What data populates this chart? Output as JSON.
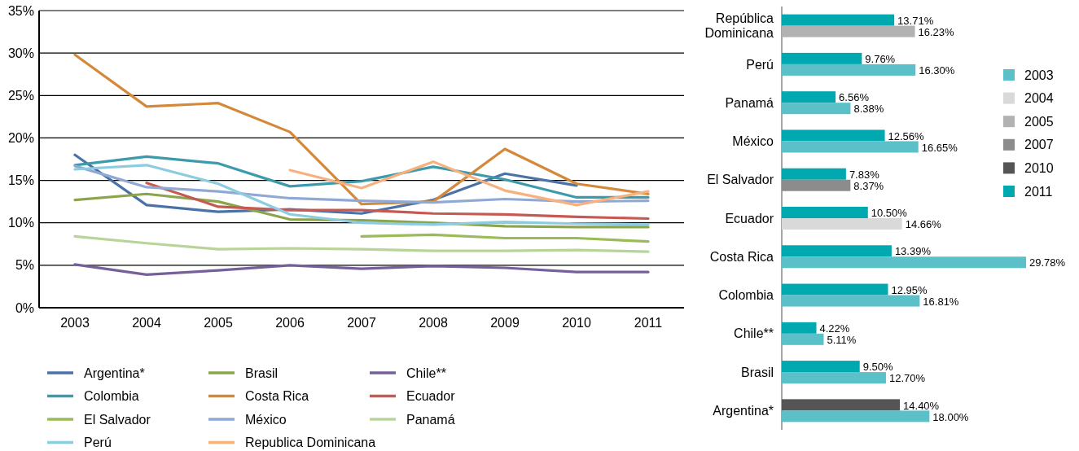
{
  "chart_data": [
    {
      "type": "line",
      "x": [
        2003,
        2004,
        2005,
        2006,
        2007,
        2008,
        2009,
        2010,
        2011
      ],
      "xlim": [
        2002.5,
        2011.5
      ],
      "xticks": [
        2003,
        2004,
        2005,
        2006,
        2007,
        2008,
        2009,
        2010,
        2011
      ],
      "ylim": [
        0,
        35
      ],
      "yticks": [
        {
          "value": 0,
          "label": "0%"
        },
        {
          "value": 5,
          "label": "5%"
        },
        {
          "value": 10,
          "label": "10%"
        },
        {
          "value": 15,
          "label": "15%"
        },
        {
          "value": 20,
          "label": "20%"
        },
        {
          "value": 25,
          "label": "25%"
        },
        {
          "value": 30,
          "label": "30%"
        },
        {
          "value": 35,
          "label": "35%"
        }
      ],
      "grid": "y",
      "legend": "bottom",
      "line_style": "solid",
      "series": [
        {
          "name": "Argentina*",
          "color": "#4a72a6",
          "values": [
            18.0,
            12.1,
            11.3,
            11.6,
            11.1,
            12.7,
            15.8,
            14.4,
            null
          ]
        },
        {
          "name": "Brasil",
          "color": "#8aa54a",
          "values": [
            12.7,
            13.4,
            12.5,
            10.4,
            10.3,
            10.0,
            9.6,
            9.5,
            9.5
          ]
        },
        {
          "name": "Chile**",
          "color": "#75609a",
          "values": [
            5.1,
            3.9,
            4.4,
            5.0,
            4.6,
            4.9,
            4.7,
            4.2,
            4.2
          ]
        },
        {
          "name": "Colombia",
          "color": "#3d9aab",
          "values": [
            16.8,
            17.8,
            17.0,
            14.3,
            14.9,
            16.6,
            15.1,
            13.0,
            13.0
          ]
        },
        {
          "name": "Costa Rica",
          "color": "#d4883a",
          "values": [
            29.8,
            23.7,
            24.1,
            20.7,
            12.2,
            12.5,
            18.7,
            14.6,
            13.4
          ]
        },
        {
          "name": "Ecuador",
          "color": "#c65a52",
          "values": [
            null,
            14.7,
            11.9,
            11.5,
            11.5,
            11.1,
            11.0,
            10.7,
            10.5
          ]
        },
        {
          "name": "El Salvador",
          "color": "#9bbb59",
          "values": [
            null,
            null,
            null,
            null,
            8.4,
            8.6,
            8.2,
            8.2,
            7.8
          ]
        },
        {
          "name": "México",
          "color": "#8fa9d4",
          "values": [
            16.7,
            14.2,
            13.7,
            12.9,
            12.6,
            12.4,
            12.8,
            12.5,
            12.6
          ]
        },
        {
          "name": "Panamá",
          "color": "#b8d49a",
          "values": [
            8.4,
            7.6,
            6.9,
            7.0,
            6.9,
            6.7,
            6.7,
            6.8,
            6.6
          ]
        },
        {
          "name": "Perú",
          "color": "#8ccbe0",
          "values": [
            16.3,
            16.8,
            14.6,
            11.0,
            10.0,
            9.8,
            10.1,
            9.9,
            9.8
          ]
        },
        {
          "name": "Republica Dominicana",
          "color": "#f8b07e",
          "values": [
            null,
            null,
            null,
            16.2,
            14.1,
            17.2,
            13.8,
            12.1,
            13.7
          ]
        }
      ]
    },
    {
      "type": "bar",
      "orientation": "horizontal",
      "categories": [
        "República Dominicana",
        "Perú",
        "Panamá",
        "México",
        "El Salvador",
        "Ecuador",
        "Costa Rica",
        "Colombia",
        "Chile**",
        "Brasil",
        "Argentina*"
      ],
      "legend": "right",
      "series": [
        {
          "name": "2003",
          "color": "#5bc0c8",
          "values": [
            null,
            16.3,
            8.38,
            16.65,
            null,
            null,
            29.78,
            16.81,
            5.11,
            12.7,
            18.0
          ],
          "value_labels": [
            null,
            "16.30%",
            "8.38%",
            "16.65%",
            null,
            null,
            "29.78%",
            "16.81%",
            "5.11%",
            "12.70%",
            "18.00%"
          ]
        },
        {
          "name": "2004",
          "color": "#d9d9d9",
          "values": [
            null,
            null,
            null,
            null,
            null,
            14.66,
            null,
            null,
            null,
            null,
            null
          ],
          "value_labels": [
            null,
            null,
            null,
            null,
            null,
            "14.66%",
            null,
            null,
            null,
            null,
            null
          ]
        },
        {
          "name": "2005",
          "color": "#b2b2b2",
          "values": [
            16.23,
            null,
            null,
            null,
            null,
            null,
            null,
            null,
            null,
            null,
            null
          ],
          "value_labels": [
            "16.23%",
            null,
            null,
            null,
            null,
            null,
            null,
            null,
            null,
            null,
            null
          ]
        },
        {
          "name": "2007",
          "color": "#8c8c8c",
          "values": [
            null,
            null,
            null,
            null,
            8.37,
            null,
            null,
            null,
            null,
            null,
            null
          ],
          "value_labels": [
            null,
            null,
            null,
            null,
            "8.37%",
            null,
            null,
            null,
            null,
            null,
            null
          ]
        },
        {
          "name": "2010",
          "color": "#555555",
          "values": [
            null,
            null,
            null,
            null,
            null,
            null,
            null,
            null,
            null,
            null,
            14.4
          ],
          "value_labels": [
            null,
            null,
            null,
            null,
            null,
            null,
            null,
            null,
            null,
            null,
            "14.40%"
          ]
        },
        {
          "name": "2011",
          "color": "#00a8b0",
          "values": [
            13.71,
            9.76,
            6.56,
            12.56,
            7.83,
            10.5,
            13.39,
            12.95,
            4.22,
            9.5,
            null
          ],
          "value_labels": [
            "13.71%",
            "9.76%",
            "6.56%",
            "12.56%",
            "7.83%",
            "10.50%",
            "13.39%",
            "12.95%",
            "4.22%",
            "9.50%",
            null
          ]
        }
      ]
    }
  ]
}
